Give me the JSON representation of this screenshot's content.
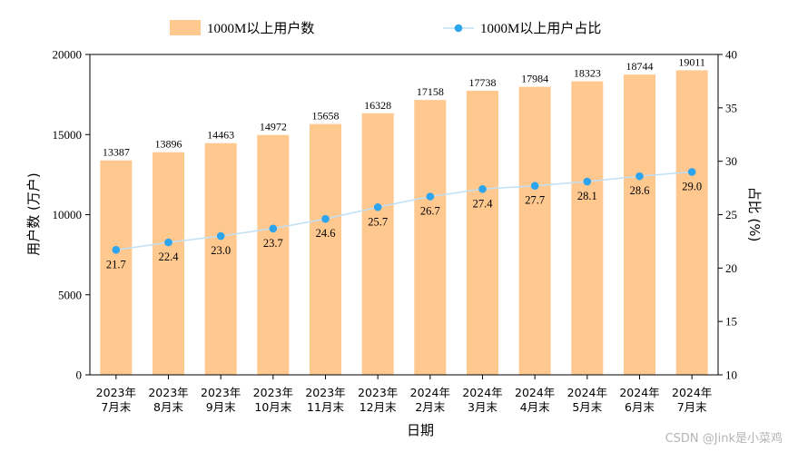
{
  "chart_data": {
    "type": "bar",
    "categories": [
      [
        "2023年",
        "7月末"
      ],
      [
        "2023年",
        "8月末"
      ],
      [
        "2023年",
        "9月末"
      ],
      [
        "2023年",
        "10月末"
      ],
      [
        "2023年",
        "11月末"
      ],
      [
        "2023年",
        "12月末"
      ],
      [
        "2024年",
        "2月末"
      ],
      [
        "2024年",
        "3月末"
      ],
      [
        "2024年",
        "4月末"
      ],
      [
        "2024年",
        "5月末"
      ],
      [
        "2024年",
        "6月末"
      ],
      [
        "2024年",
        "7月末"
      ]
    ],
    "series": [
      {
        "name": "1000M以上用户数",
        "type": "bar",
        "axis": "left",
        "color": "#FFC88F",
        "values": [
          13387,
          13896,
          14463,
          14972,
          15658,
          16328,
          17158,
          17738,
          17984,
          18323,
          18744,
          19011
        ],
        "labels": [
          "13387",
          "13896",
          "14463",
          "14972",
          "15658",
          "16328",
          "17158",
          "17738",
          "17984",
          "18323",
          "18744",
          "19011"
        ]
      },
      {
        "name": "1000M以上用户占比",
        "type": "line",
        "axis": "right",
        "color": "#2CA4EE",
        "line_color": "#BFE0F5",
        "values": [
          21.7,
          22.4,
          23.0,
          23.7,
          24.6,
          25.7,
          26.7,
          27.4,
          27.7,
          28.1,
          28.6,
          29.0
        ],
        "labels": [
          "21.7",
          "22.4",
          "23.0",
          "23.7",
          "24.6",
          "25.7",
          "26.7",
          "27.4",
          "27.7",
          "28.1",
          "28.6",
          "29.0"
        ]
      }
    ],
    "xlabel": "日期",
    "ylabel": "用户数 (万户)",
    "y2label": "占比 (%)",
    "ylim": [
      0,
      20000
    ],
    "y2lim": [
      10,
      40
    ],
    "yticks": [
      0,
      5000,
      10000,
      15000,
      20000
    ],
    "y2ticks": [
      10,
      15,
      20,
      25,
      30,
      35,
      40
    ],
    "grid": false,
    "legend_position": "top"
  },
  "watermark": "CSDN @Jink是小菜鸡"
}
